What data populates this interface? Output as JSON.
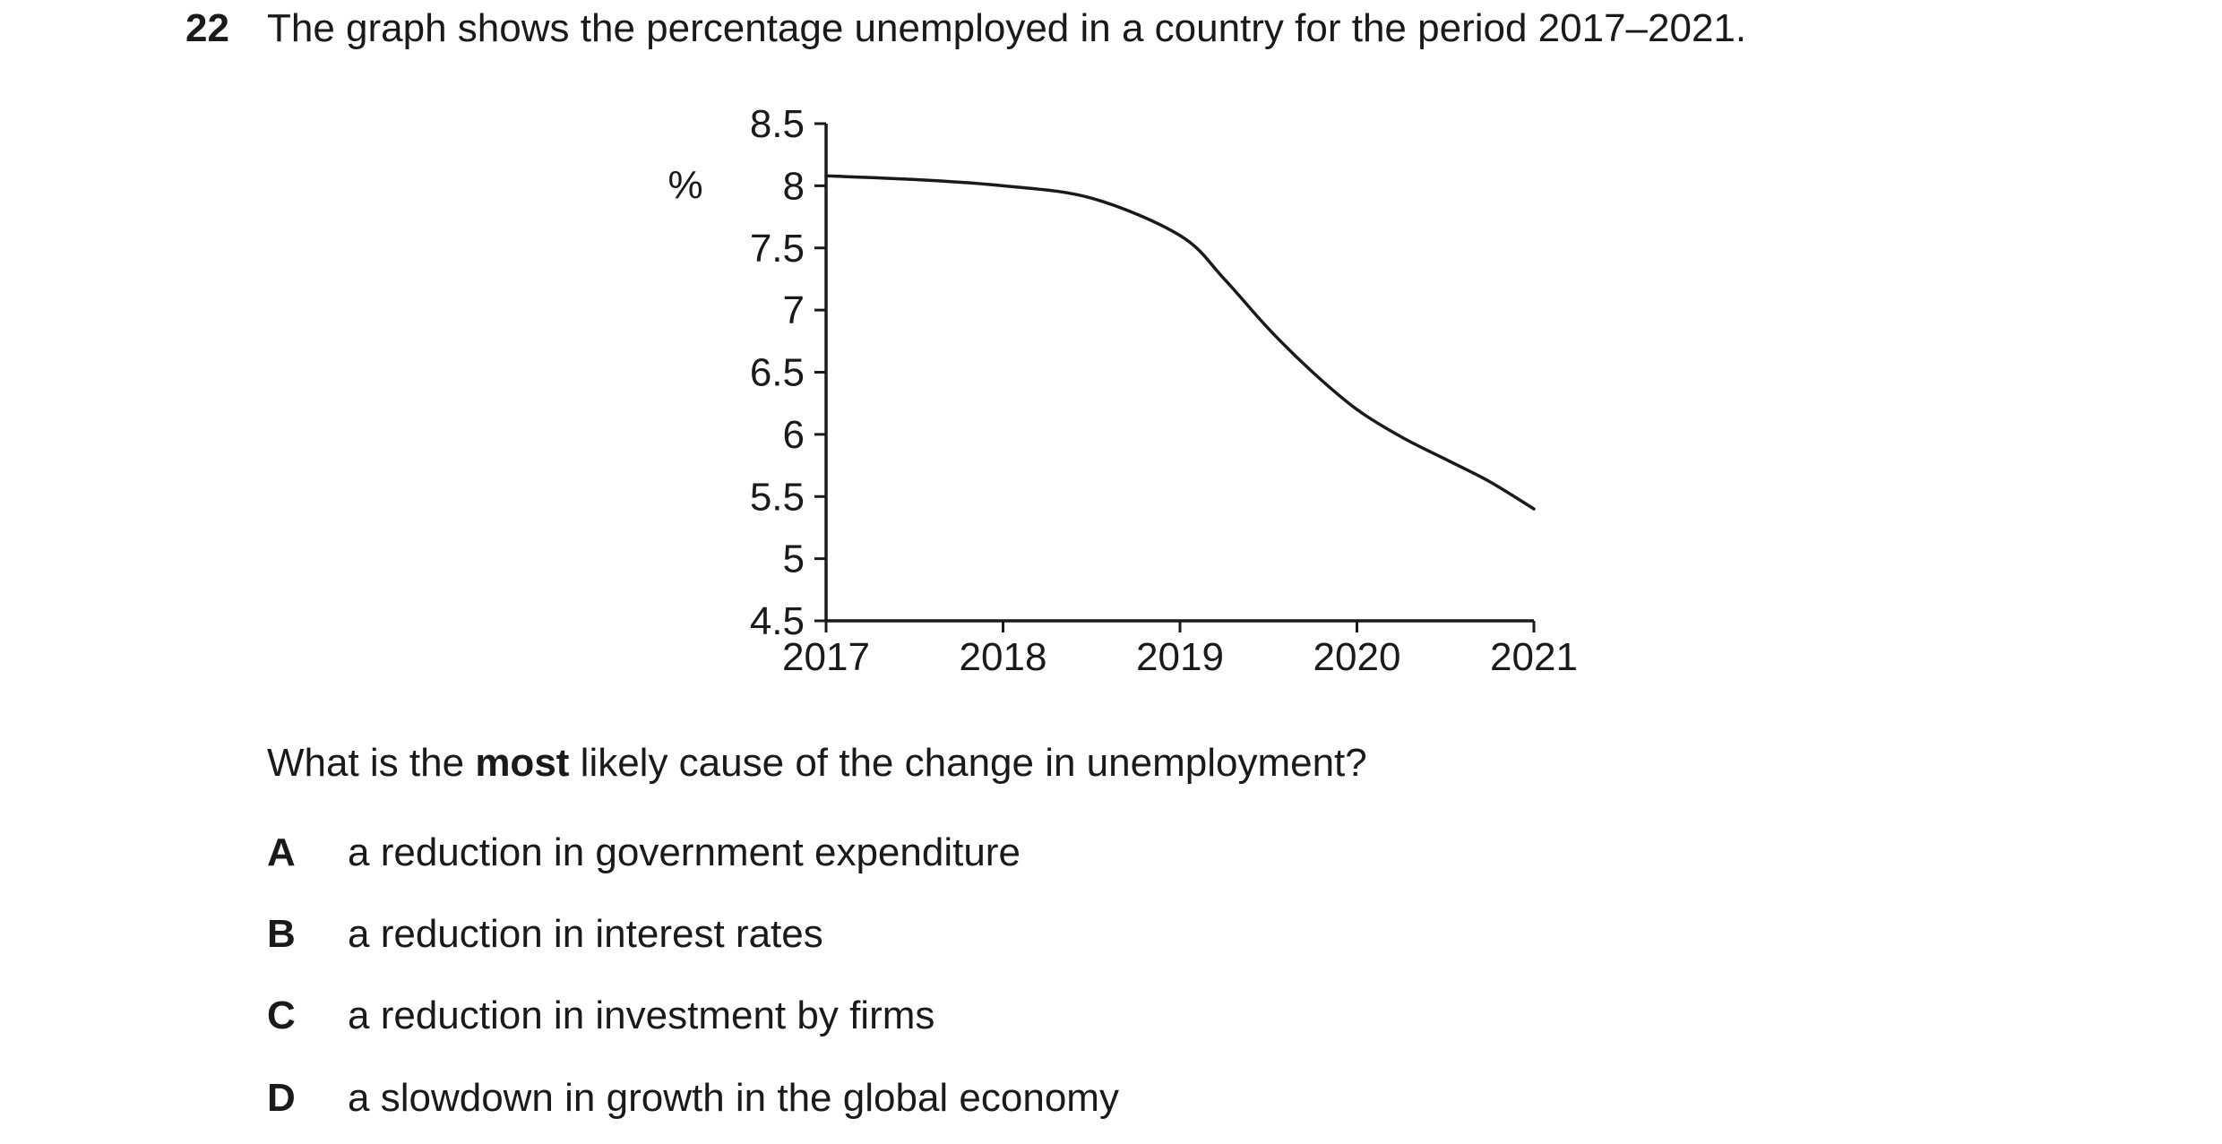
{
  "question": {
    "number": "22",
    "stem": "The graph shows the percentage unemployed in a country for the period 2017–2021.",
    "prompt_before": "What is the ",
    "prompt_bold": "most",
    "prompt_after": " likely cause of the change in unemployment?",
    "options": [
      {
        "letter": "A",
        "text": "a reduction in government expenditure"
      },
      {
        "letter": "B",
        "text": "a reduction in interest rates"
      },
      {
        "letter": "C",
        "text": "a reduction in investment by firms"
      },
      {
        "letter": "D",
        "text": "a slowdown in growth in the global economy"
      }
    ]
  },
  "chart_data": {
    "type": "line",
    "title": "",
    "xlabel": "",
    "ylabel": "%",
    "xlim": [
      2017,
      2021
    ],
    "ylim": [
      4.5,
      8.5
    ],
    "x_ticks": [
      2017,
      2018,
      2019,
      2020,
      2021
    ],
    "y_ticks": [
      4.5,
      5,
      5.5,
      6,
      6.5,
      7,
      7.5,
      8,
      8.5
    ],
    "y_tick_labels": [
      "4.5",
      "5",
      "5.5",
      "6",
      "6.5",
      "7",
      "7.5",
      "8",
      "8.5"
    ],
    "grid": false,
    "series": [
      {
        "name": "",
        "x": [
          2017,
          2017.5,
          2018,
          2018.5,
          2019,
          2019.25,
          2019.5,
          2019.75,
          2020,
          2020.25,
          2020.5,
          2020.75,
          2021
        ],
        "y": [
          8.08,
          8.05,
          8.0,
          7.9,
          7.6,
          7.25,
          6.85,
          6.5,
          6.2,
          5.98,
          5.8,
          5.62,
          5.4
        ]
      }
    ],
    "colors": {
      "line": "#1a1a1a",
      "axis": "#1a1a1a"
    }
  }
}
